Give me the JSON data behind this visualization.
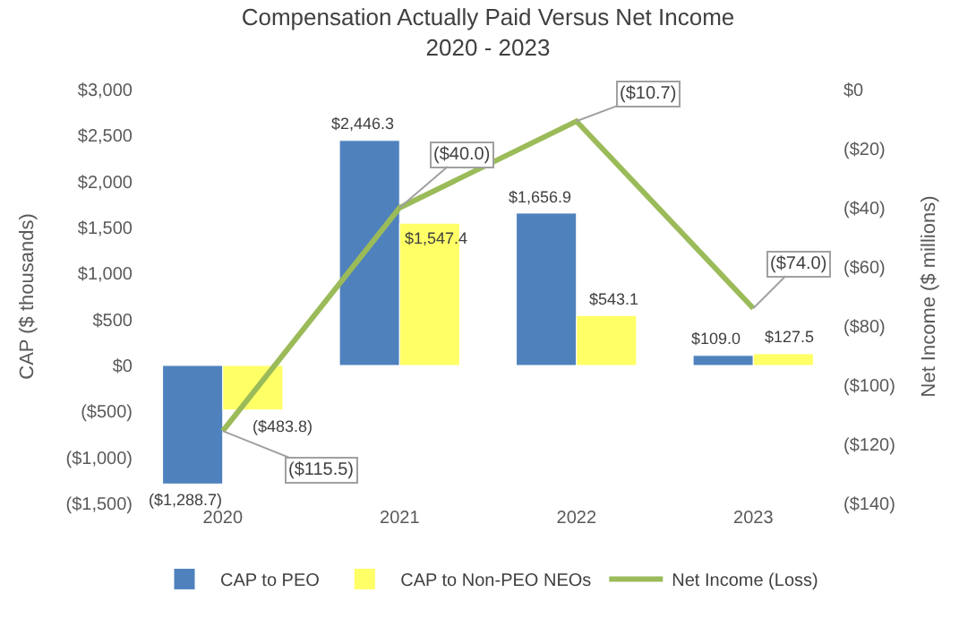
{
  "chart_data": {
    "type": "bar",
    "title": "Compensation Actually Paid Versus Net Income",
    "subtitle": "2020 - 2023",
    "ylabel": "CAP ($ thousands)",
    "y2label": "Net Income ($ millions)",
    "categories": [
      "2020",
      "2021",
      "2022",
      "2023"
    ],
    "series": [
      {
        "name": "CAP to PEO",
        "color": "#4f81bd",
        "values": [
          -1288.7,
          2446.3,
          1656.9,
          109.0
        ],
        "value_labels": [
          "($1,288.7)",
          "$2,446.3",
          "$1,656.9",
          "$109.0"
        ]
      },
      {
        "name": "CAP to Non-PEO NEOs",
        "color": "#ffff66",
        "values": [
          -483.8,
          1547.4,
          543.1,
          127.5
        ],
        "value_labels": [
          "($483.8)",
          "$1,547.4",
          "$543.1",
          "$127.5"
        ]
      },
      {
        "name": "Net Income (Loss)",
        "type": "line",
        "axis": "y2",
        "color": "#9bbb59",
        "marker": "none",
        "values": [
          -115.5,
          -40.0,
          -10.7,
          -74.0
        ],
        "value_labels": [
          "($115.5)",
          "($40.0)",
          "($10.7)",
          "($74.0)"
        ]
      }
    ],
    "ylim": [
      -1500,
      3000
    ],
    "yticks": [
      {
        "value": -1500,
        "label": "($1,500)"
      },
      {
        "value": -1000,
        "label": "($1,000)"
      },
      {
        "value": -500,
        "label": "($500)"
      },
      {
        "value": 0,
        "label": "$0"
      },
      {
        "value": 500,
        "label": "$500"
      },
      {
        "value": 1000,
        "label": "$1,000"
      },
      {
        "value": 1500,
        "label": "$1,500"
      },
      {
        "value": 2000,
        "label": "$2,000"
      },
      {
        "value": 2500,
        "label": "$2,500"
      },
      {
        "value": 3000,
        "label": "$3,000"
      }
    ],
    "y2lim": [
      -140,
      0
    ],
    "y2ticks": [
      {
        "value": -140,
        "label": "($140)"
      },
      {
        "value": -120,
        "label": "($120)"
      },
      {
        "value": -100,
        "label": "($100)"
      },
      {
        "value": -80,
        "label": "($80)"
      },
      {
        "value": -60,
        "label": "($60)"
      },
      {
        "value": -40,
        "label": "($40)"
      },
      {
        "value": -20,
        "label": "($20)"
      },
      {
        "value": 0,
        "label": "$0"
      }
    ],
    "grid": false,
    "legend": "bottom"
  }
}
